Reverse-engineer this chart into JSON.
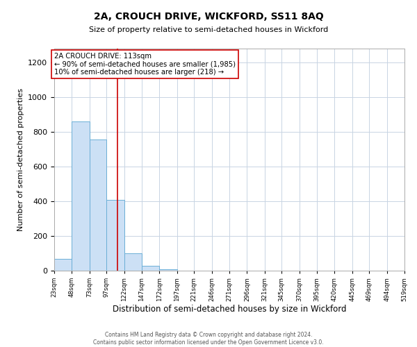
{
  "title": "2A, CROUCH DRIVE, WICKFORD, SS11 8AQ",
  "subtitle": "Size of property relative to semi-detached houses in Wickford",
  "xlabel": "Distribution of semi-detached houses by size in Wickford",
  "ylabel": "Number of semi-detached properties",
  "bin_edges": [
    23,
    48,
    73,
    97,
    122,
    147,
    172,
    197,
    221,
    246,
    271,
    296,
    321,
    345,
    370,
    395,
    420,
    445,
    469,
    494,
    519
  ],
  "bin_counts": [
    70,
    860,
    755,
    410,
    100,
    28,
    10,
    0,
    0,
    0,
    0,
    0,
    0,
    0,
    0,
    0,
    0,
    0,
    0,
    0
  ],
  "bar_color": "#cce0f5",
  "bar_edge_color": "#6baed6",
  "property_size": 113,
  "red_line_color": "#cc0000",
  "annotation_text_line1": "2A CROUCH DRIVE: 113sqm",
  "annotation_text_line2": "← 90% of semi-detached houses are smaller (1,985)",
  "annotation_text_line3": "10% of semi-detached houses are larger (218) →",
  "annotation_box_color": "#ffffff",
  "annotation_box_edge_color": "#cc0000",
  "ylim": [
    0,
    1280
  ],
  "yticks": [
    0,
    200,
    400,
    600,
    800,
    1000,
    1200
  ],
  "tick_labels": [
    "23sqm",
    "48sqm",
    "73sqm",
    "97sqm",
    "122sqm",
    "147sqm",
    "172sqm",
    "197sqm",
    "221sqm",
    "246sqm",
    "271sqm",
    "296sqm",
    "321sqm",
    "345sqm",
    "370sqm",
    "395sqm",
    "420sqm",
    "445sqm",
    "469sqm",
    "494sqm",
    "519sqm"
  ],
  "footer_line1": "Contains HM Land Registry data © Crown copyright and database right 2024.",
  "footer_line2": "Contains public sector information licensed under the Open Government Licence v3.0.",
  "background_color": "#ffffff",
  "grid_color": "#c8d4e3",
  "figsize": [
    6.0,
    5.0
  ],
  "dpi": 100
}
